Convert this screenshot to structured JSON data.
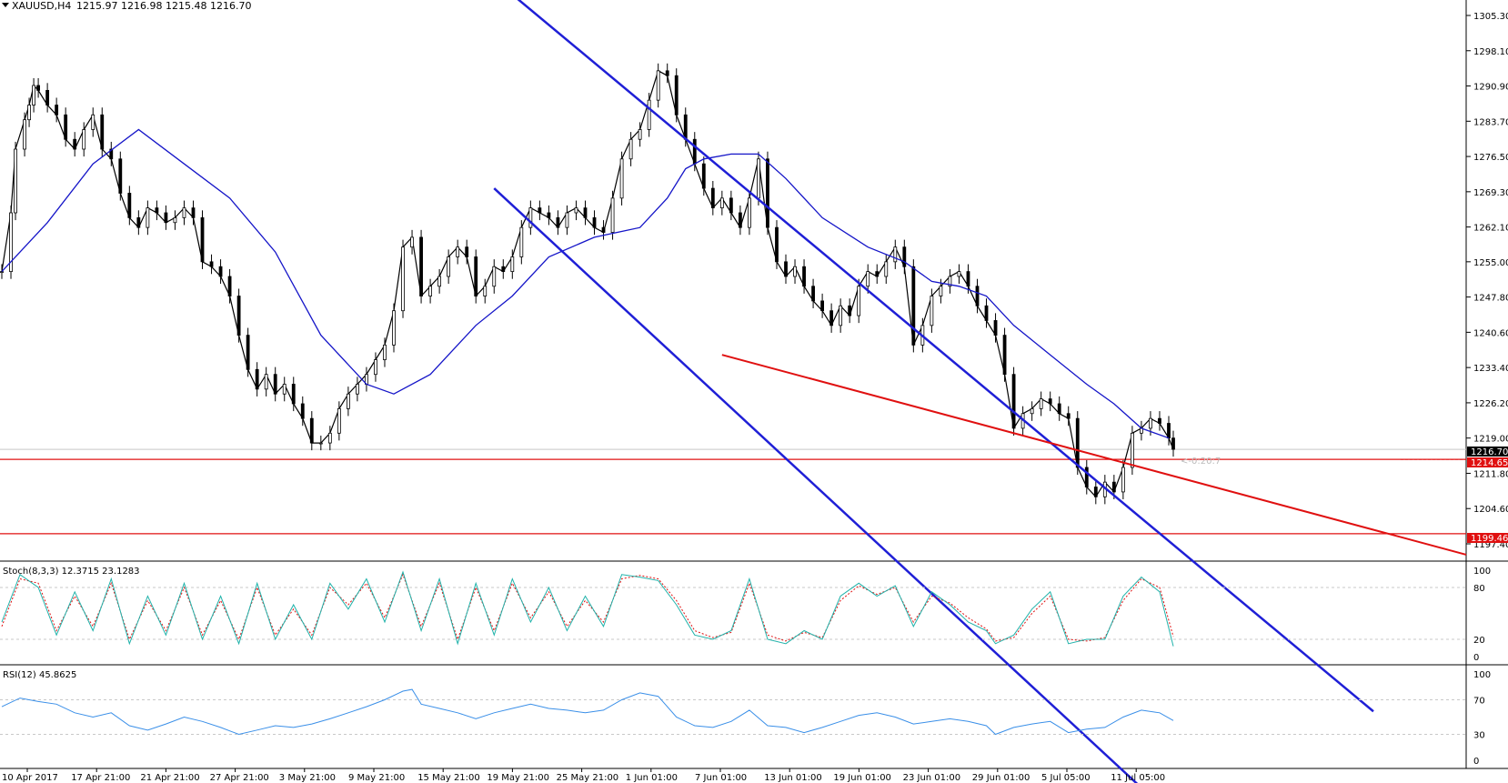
{
  "header": {
    "symbol_text": "XAUUSD,H4",
    "ohlc_text": "1215.97 1216.98 1215.48 1216.70"
  },
  "colors": {
    "price_line": "#000000",
    "ma_line": "#1515c8",
    "channel": "#1f1fd6",
    "support": "#e01010",
    "stoch_main": "#20b2aa",
    "stoch_signal": "#e01010",
    "rsi": "#3a8fe8"
  },
  "price_axis": {
    "ticks": [
      "1305.30",
      "1298.10",
      "1290.90",
      "1283.70",
      "1276.50",
      "1269.30",
      "1262.10",
      "1255.00",
      "1247.80",
      "1240.60",
      "1233.40",
      "1226.20",
      "1219.00",
      "1211.80",
      "1204.60",
      "1197.40"
    ],
    "current_label": "1216.70",
    "level1_label": "1214.65",
    "level2_label": "1199.46",
    "range_label": "<-0:20:7"
  },
  "x_axis": {
    "labels": [
      "10 Apr 2017",
      "17 Apr 21:00",
      "21 Apr 21:00",
      "27 Apr 21:00",
      "3 May 21:00",
      "9 May 21:00",
      "15 May 21:00",
      "19 May 21:00",
      "25 May 21:00",
      "1 Jun 01:00",
      "7 Jun 01:00",
      "13 Jun 01:00",
      "19 Jun 01:00",
      "23 Jun 01:00",
      "29 Jun 01:00",
      "5 Jul 05:00",
      "11 Jul 05:00"
    ]
  },
  "stoch": {
    "label": "Stoch(8,3,3) 12.3715 23.1283",
    "levels": [
      "100",
      "80",
      "20",
      "0"
    ]
  },
  "rsi": {
    "label": "RSI(12) 45.8625",
    "levels": [
      "100",
      "70",
      "30",
      "0"
    ]
  },
  "chart_data": {
    "type": "candlestick",
    "symbol": "XAUUSD",
    "timeframe": "H4",
    "ylim": [
      1195,
      1308
    ],
    "support_levels": [
      1214.65,
      1199.46
    ],
    "price_path": [
      [
        0,
        1253
      ],
      [
        2,
        1265
      ],
      [
        3,
        1278
      ],
      [
        5,
        1284
      ],
      [
        6,
        1287
      ],
      [
        7,
        1291
      ],
      [
        8,
        1290
      ],
      [
        10,
        1287
      ],
      [
        12,
        1285
      ],
      [
        14,
        1280
      ],
      [
        16,
        1278
      ],
      [
        18,
        1282
      ],
      [
        20,
        1285
      ],
      [
        22,
        1278
      ],
      [
        24,
        1276
      ],
      [
        26,
        1269
      ],
      [
        28,
        1264
      ],
      [
        30,
        1262
      ],
      [
        32,
        1266
      ],
      [
        34,
        1265
      ],
      [
        36,
        1263
      ],
      [
        38,
        1264
      ],
      [
        40,
        1266
      ],
      [
        42,
        1264
      ],
      [
        44,
        1255
      ],
      [
        46,
        1254
      ],
      [
        48,
        1252
      ],
      [
        50,
        1248
      ],
      [
        52,
        1240
      ],
      [
        54,
        1233
      ],
      [
        56,
        1229
      ],
      [
        58,
        1232
      ],
      [
        60,
        1228
      ],
      [
        62,
        1230
      ],
      [
        64,
        1226
      ],
      [
        66,
        1223
      ],
      [
        68,
        1218
      ],
      [
        70,
        1218
      ],
      [
        72,
        1220
      ],
      [
        74,
        1225
      ],
      [
        76,
        1228
      ],
      [
        78,
        1230
      ],
      [
        80,
        1232
      ],
      [
        82,
        1235
      ],
      [
        84,
        1238
      ],
      [
        86,
        1245
      ],
      [
        88,
        1258
      ],
      [
        90,
        1260
      ],
      [
        92,
        1248
      ],
      [
        94,
        1250
      ],
      [
        96,
        1252
      ],
      [
        98,
        1256
      ],
      [
        100,
        1258
      ],
      [
        102,
        1256
      ],
      [
        104,
        1248
      ],
      [
        106,
        1250
      ],
      [
        108,
        1254
      ],
      [
        110,
        1253
      ],
      [
        112,
        1256
      ],
      [
        114,
        1262
      ],
      [
        116,
        1266
      ],
      [
        118,
        1265
      ],
      [
        120,
        1264
      ],
      [
        122,
        1262
      ],
      [
        124,
        1265
      ],
      [
        126,
        1266
      ],
      [
        128,
        1264
      ],
      [
        130,
        1262
      ],
      [
        132,
        1261
      ],
      [
        134,
        1268
      ],
      [
        136,
        1276
      ],
      [
        138,
        1280
      ],
      [
        140,
        1282
      ],
      [
        142,
        1288
      ],
      [
        144,
        1294
      ],
      [
        146,
        1293
      ],
      [
        148,
        1285
      ],
      [
        150,
        1280
      ],
      [
        152,
        1275
      ],
      [
        154,
        1270
      ],
      [
        156,
        1266
      ],
      [
        158,
        1268
      ],
      [
        160,
        1265
      ],
      [
        162,
        1262
      ],
      [
        164,
        1268
      ],
      [
        166,
        1276
      ],
      [
        168,
        1262
      ],
      [
        170,
        1255
      ],
      [
        172,
        1252
      ],
      [
        174,
        1254
      ],
      [
        176,
        1250
      ],
      [
        178,
        1247
      ],
      [
        180,
        1245
      ],
      [
        182,
        1242
      ],
      [
        184,
        1246
      ],
      [
        186,
        1244
      ],
      [
        188,
        1250
      ],
      [
        190,
        1253
      ],
      [
        192,
        1252
      ],
      [
        194,
        1255
      ],
      [
        196,
        1258
      ],
      [
        198,
        1254
      ],
      [
        200,
        1238
      ],
      [
        202,
        1242
      ],
      [
        204,
        1248
      ],
      [
        206,
        1250
      ],
      [
        208,
        1252
      ],
      [
        210,
        1253
      ],
      [
        212,
        1250
      ],
      [
        214,
        1246
      ],
      [
        216,
        1243
      ],
      [
        218,
        1240
      ],
      [
        220,
        1232
      ],
      [
        222,
        1221
      ],
      [
        224,
        1224
      ],
      [
        226,
        1225
      ],
      [
        228,
        1227
      ],
      [
        230,
        1226
      ],
      [
        232,
        1224
      ],
      [
        234,
        1223
      ],
      [
        236,
        1213
      ],
      [
        238,
        1209
      ],
      [
        240,
        1207
      ],
      [
        242,
        1210
      ],
      [
        244,
        1208
      ],
      [
        246,
        1213
      ],
      [
        248,
        1220
      ],
      [
        250,
        1221
      ],
      [
        252,
        1223
      ],
      [
        254,
        1222
      ],
      [
        256,
        1219
      ],
      [
        257,
        1216.7
      ]
    ],
    "moving_average": [
      [
        0,
        1253
      ],
      [
        10,
        1263
      ],
      [
        20,
        1275
      ],
      [
        30,
        1282
      ],
      [
        40,
        1275
      ],
      [
        50,
        1268
      ],
      [
        60,
        1257
      ],
      [
        70,
        1240
      ],
      [
        80,
        1230
      ],
      [
        86,
        1228
      ],
      [
        94,
        1232
      ],
      [
        104,
        1242
      ],
      [
        112,
        1248
      ],
      [
        120,
        1256
      ],
      [
        130,
        1260
      ],
      [
        140,
        1262
      ],
      [
        146,
        1268
      ],
      [
        150,
        1274
      ],
      [
        154,
        1276
      ],
      [
        160,
        1277
      ],
      [
        166,
        1277
      ],
      [
        172,
        1272
      ],
      [
        180,
        1264
      ],
      [
        190,
        1258
      ],
      [
        198,
        1255
      ],
      [
        204,
        1251
      ],
      [
        210,
        1250
      ],
      [
        216,
        1248
      ],
      [
        222,
        1242
      ],
      [
        230,
        1236
      ],
      [
        238,
        1230
      ],
      [
        244,
        1226
      ],
      [
        250,
        1221
      ],
      [
        256,
        1219
      ]
    ],
    "channel_upper": [
      [
        105,
        1315
      ],
      [
        225,
        1222
      ]
    ],
    "channel_lower": [
      [
        108,
        1270
      ],
      [
        195,
        1195
      ]
    ],
    "resistance_line": [
      [
        158,
        1236
      ],
      [
        250,
        1213
      ]
    ],
    "stochastic_main": [
      [
        0,
        40
      ],
      [
        4,
        95
      ],
      [
        8,
        80
      ],
      [
        12,
        25
      ],
      [
        16,
        75
      ],
      [
        20,
        30
      ],
      [
        24,
        90
      ],
      [
        28,
        15
      ],
      [
        32,
        70
      ],
      [
        36,
        25
      ],
      [
        40,
        85
      ],
      [
        44,
        20
      ],
      [
        48,
        70
      ],
      [
        52,
        15
      ],
      [
        56,
        85
      ],
      [
        60,
        20
      ],
      [
        64,
        60
      ],
      [
        68,
        20
      ],
      [
        72,
        85
      ],
      [
        76,
        55
      ],
      [
        80,
        90
      ],
      [
        84,
        40
      ],
      [
        88,
        98
      ],
      [
        92,
        30
      ],
      [
        96,
        90
      ],
      [
        100,
        15
      ],
      [
        104,
        85
      ],
      [
        108,
        25
      ],
      [
        112,
        90
      ],
      [
        116,
        40
      ],
      [
        120,
        80
      ],
      [
        124,
        30
      ],
      [
        128,
        70
      ],
      [
        132,
        35
      ],
      [
        136,
        95
      ],
      [
        140,
        92
      ],
      [
        144,
        88
      ],
      [
        148,
        60
      ],
      [
        152,
        25
      ],
      [
        156,
        20
      ],
      [
        160,
        30
      ],
      [
        164,
        90
      ],
      [
        168,
        20
      ],
      [
        172,
        15
      ],
      [
        176,
        30
      ],
      [
        180,
        20
      ],
      [
        184,
        70
      ],
      [
        188,
        85
      ],
      [
        192,
        70
      ],
      [
        196,
        82
      ],
      [
        200,
        35
      ],
      [
        204,
        75
      ],
      [
        208,
        60
      ],
      [
        212,
        40
      ],
      [
        216,
        30
      ],
      [
        218,
        15
      ],
      [
        222,
        25
      ],
      [
        226,
        55
      ],
      [
        230,
        75
      ],
      [
        234,
        15
      ],
      [
        238,
        20
      ],
      [
        242,
        20
      ],
      [
        246,
        70
      ],
      [
        250,
        92
      ],
      [
        254,
        75
      ],
      [
        257,
        12
      ]
    ],
    "stochastic_signal": [
      [
        0,
        35
      ],
      [
        4,
        90
      ],
      [
        8,
        85
      ],
      [
        12,
        30
      ],
      [
        16,
        70
      ],
      [
        20,
        35
      ],
      [
        24,
        85
      ],
      [
        28,
        20
      ],
      [
        32,
        65
      ],
      [
        36,
        30
      ],
      [
        40,
        80
      ],
      [
        44,
        25
      ],
      [
        48,
        65
      ],
      [
        52,
        20
      ],
      [
        56,
        80
      ],
      [
        60,
        25
      ],
      [
        64,
        55
      ],
      [
        68,
        25
      ],
      [
        72,
        80
      ],
      [
        76,
        60
      ],
      [
        80,
        85
      ],
      [
        84,
        45
      ],
      [
        88,
        95
      ],
      [
        92,
        35
      ],
      [
        96,
        85
      ],
      [
        100,
        20
      ],
      [
        104,
        80
      ],
      [
        108,
        30
      ],
      [
        112,
        85
      ],
      [
        116,
        45
      ],
      [
        120,
        75
      ],
      [
        124,
        35
      ],
      [
        128,
        65
      ],
      [
        132,
        40
      ],
      [
        136,
        90
      ],
      [
        140,
        94
      ],
      [
        144,
        90
      ],
      [
        148,
        65
      ],
      [
        152,
        30
      ],
      [
        156,
        22
      ],
      [
        160,
        28
      ],
      [
        164,
        85
      ],
      [
        168,
        25
      ],
      [
        172,
        18
      ],
      [
        176,
        28
      ],
      [
        180,
        22
      ],
      [
        184,
        65
      ],
      [
        188,
        82
      ],
      [
        192,
        72
      ],
      [
        196,
        80
      ],
      [
        200,
        40
      ],
      [
        204,
        70
      ],
      [
        208,
        62
      ],
      [
        212,
        45
      ],
      [
        216,
        32
      ],
      [
        218,
        18
      ],
      [
        222,
        22
      ],
      [
        226,
        50
      ],
      [
        230,
        70
      ],
      [
        234,
        20
      ],
      [
        238,
        18
      ],
      [
        242,
        22
      ],
      [
        246,
        65
      ],
      [
        250,
        90
      ],
      [
        254,
        80
      ],
      [
        257,
        23
      ]
    ],
    "rsi_values": [
      [
        0,
        62
      ],
      [
        4,
        72
      ],
      [
        8,
        68
      ],
      [
        12,
        65
      ],
      [
        16,
        55
      ],
      [
        20,
        50
      ],
      [
        24,
        55
      ],
      [
        28,
        40
      ],
      [
        32,
        35
      ],
      [
        36,
        42
      ],
      [
        40,
        50
      ],
      [
        44,
        45
      ],
      [
        48,
        38
      ],
      [
        52,
        30
      ],
      [
        56,
        35
      ],
      [
        60,
        40
      ],
      [
        64,
        38
      ],
      [
        68,
        42
      ],
      [
        72,
        48
      ],
      [
        76,
        55
      ],
      [
        80,
        62
      ],
      [
        84,
        70
      ],
      [
        88,
        80
      ],
      [
        90,
        82
      ],
      [
        92,
        65
      ],
      [
        96,
        60
      ],
      [
        100,
        55
      ],
      [
        104,
        48
      ],
      [
        108,
        55
      ],
      [
        112,
        60
      ],
      [
        116,
        65
      ],
      [
        120,
        60
      ],
      [
        124,
        58
      ],
      [
        128,
        55
      ],
      [
        132,
        58
      ],
      [
        136,
        70
      ],
      [
        140,
        78
      ],
      [
        144,
        74
      ],
      [
        148,
        50
      ],
      [
        152,
        40
      ],
      [
        156,
        38
      ],
      [
        160,
        45
      ],
      [
        164,
        58
      ],
      [
        168,
        40
      ],
      [
        172,
        38
      ],
      [
        176,
        32
      ],
      [
        180,
        38
      ],
      [
        184,
        45
      ],
      [
        188,
        52
      ],
      [
        192,
        55
      ],
      [
        196,
        50
      ],
      [
        200,
        42
      ],
      [
        204,
        45
      ],
      [
        208,
        48
      ],
      [
        212,
        45
      ],
      [
        216,
        40
      ],
      [
        218,
        30
      ],
      [
        222,
        38
      ],
      [
        226,
        42
      ],
      [
        230,
        45
      ],
      [
        234,
        32
      ],
      [
        238,
        36
      ],
      [
        242,
        38
      ],
      [
        246,
        50
      ],
      [
        250,
        58
      ],
      [
        254,
        55
      ],
      [
        257,
        46
      ]
    ]
  }
}
